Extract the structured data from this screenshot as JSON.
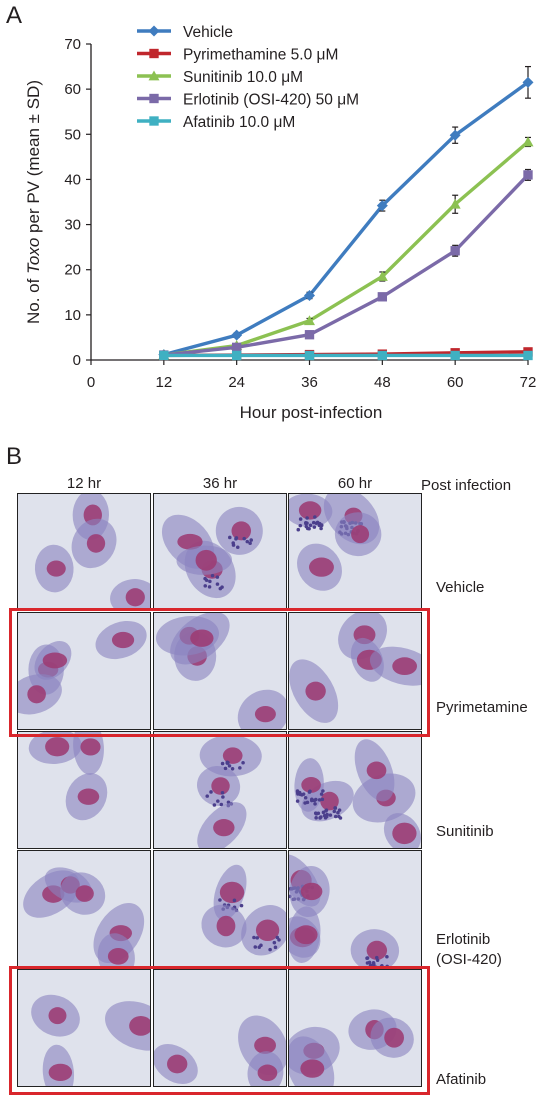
{
  "panel_a_label": "A",
  "panel_b_label": "B",
  "chart_data": {
    "type": "line",
    "xlabel": "Hour post-infection",
    "ylabel_prefix": "No. of ",
    "ylabel_italic": "Toxo",
    "ylabel_suffix": " per PV (mean ± SD)",
    "x_ticks": [
      0,
      12,
      24,
      36,
      48,
      60,
      72
    ],
    "y_ticks": [
      0,
      10,
      20,
      30,
      40,
      50,
      60,
      70
    ],
    "xlim": [
      0,
      72
    ],
    "ylim": [
      0,
      70
    ],
    "legend_position": "top-left",
    "grid": false,
    "series": [
      {
        "name": "Vehicle",
        "color": "#3f7cbf",
        "marker": "diamond",
        "x": [
          12,
          24,
          36,
          48,
          60,
          72
        ],
        "y": [
          1.2,
          5.5,
          14.3,
          34.2,
          49.8,
          61.5
        ],
        "err": [
          0.2,
          0.5,
          0.7,
          1.2,
          1.8,
          3.5
        ]
      },
      {
        "name": "Pyrimethamine 5.0 μM",
        "color": "#c0272d",
        "marker": "square",
        "x": [
          12,
          24,
          36,
          48,
          60,
          72
        ],
        "y": [
          1.0,
          1.1,
          1.2,
          1.3,
          1.6,
          1.8
        ],
        "err": [
          0.1,
          0.1,
          0.1,
          0.2,
          0.2,
          0.2
        ]
      },
      {
        "name": "Sunitinib 10.0 μM",
        "color": "#8cc152",
        "marker": "triangle",
        "x": [
          12,
          24,
          36,
          48,
          60,
          72
        ],
        "y": [
          1.1,
          3.2,
          8.7,
          18.5,
          34.5,
          48.3
        ],
        "err": [
          0.1,
          0.4,
          0.5,
          1.0,
          2.0,
          1.0
        ]
      },
      {
        "name": "Erlotinib (OSI-420) 50 μM",
        "color": "#7b6aa8",
        "marker": "square",
        "x": [
          12,
          24,
          36,
          48,
          60,
          72
        ],
        "y": [
          1.1,
          2.8,
          5.6,
          14.0,
          24.2,
          41.0
        ],
        "err": [
          0.1,
          0.3,
          0.6,
          0.8,
          1.2,
          1.2
        ]
      },
      {
        "name": "Afatinib 10.0 μM",
        "color": "#3fb0c2",
        "marker": "square",
        "x": [
          12,
          24,
          36,
          48,
          60,
          72
        ],
        "y": [
          1.0,
          1.0,
          1.0,
          1.0,
          1.0,
          1.0
        ],
        "err": [
          0.1,
          0.1,
          0.1,
          0.1,
          0.1,
          0.1
        ]
      }
    ]
  },
  "micrograph": {
    "column_headers": [
      "12 hr",
      "36 hr",
      "60 hr"
    ],
    "column_group_label": "Post infection",
    "row_labels": [
      {
        "line1": "Vehicle",
        "line2": ""
      },
      {
        "line1": "Pyrimetamine",
        "line2": ""
      },
      {
        "line1": "Sunitinib",
        "line2": ""
      },
      {
        "line1": "Erlotinib",
        "line2": "(OSI-420)"
      },
      {
        "line1": "Afatinib",
        "line2": ""
      }
    ],
    "highlight_rows": [
      "Pyrimetamine",
      "Afatinib"
    ],
    "highlight_color": "#d9262c",
    "cell_background": "#dfe2ec",
    "cytoplasm_color": "#8b83bf",
    "nucleus_color": "#9c3d74",
    "parasite_color": "#4b3f8c"
  }
}
